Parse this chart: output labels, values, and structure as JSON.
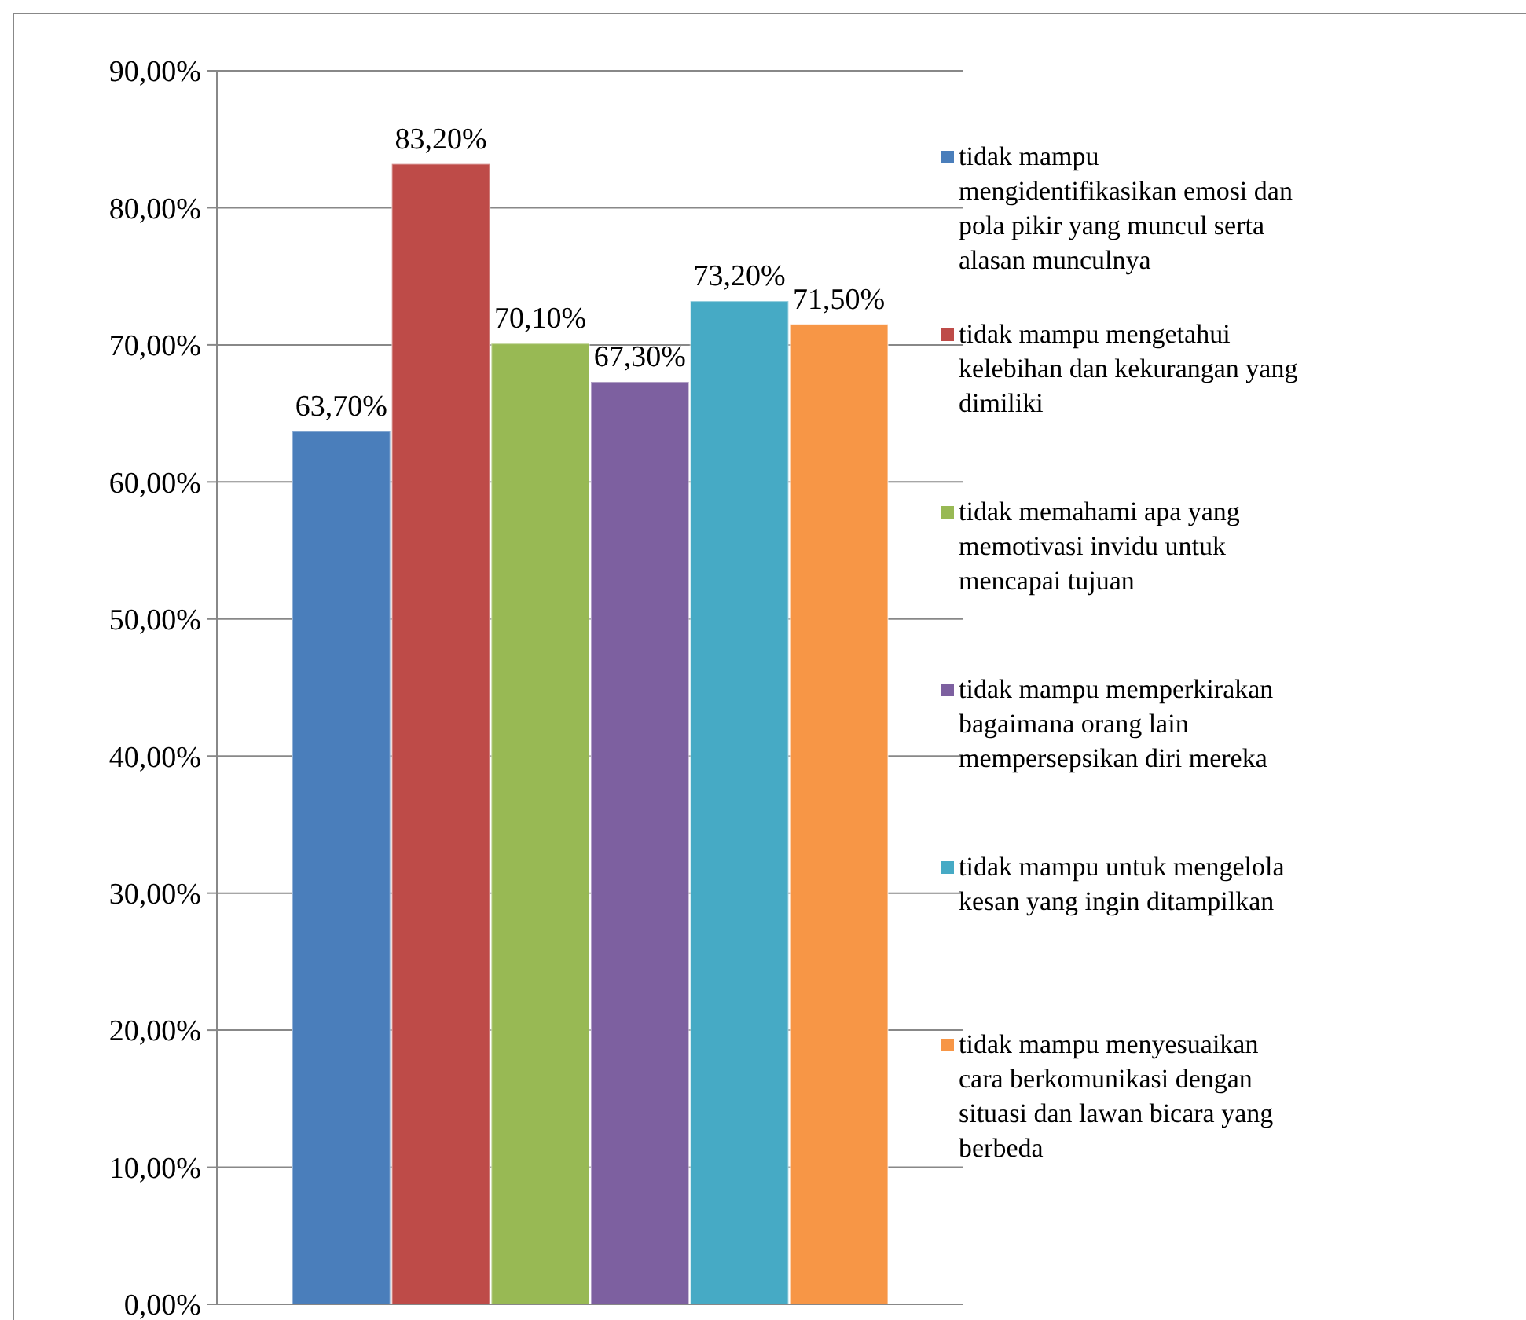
{
  "chart_data": {
    "type": "bar",
    "categories": [
      null
    ],
    "series": [
      {
        "name": "tidak mampu mengidentifikasikan emosi dan pola pikir yang muncul serta alasan munculnya",
        "color": "#4a7ebb",
        "values": [
          63.7
        ],
        "value_labels": [
          "63,70%"
        ]
      },
      {
        "name": "tidak mampu mengetahui kelebihan dan kekurangan yang dimiliki",
        "color": "#be4b48",
        "values": [
          83.2
        ],
        "value_labels": [
          "83,20%"
        ]
      },
      {
        "name": "tidak memahami apa yang memotivasi invidu untuk mencapai tujuan",
        "color": "#98b954",
        "values": [
          70.1
        ],
        "value_labels": [
          "70,10%"
        ]
      },
      {
        "name": "tidak mampu memperkirakan bagaimana orang lain mempersepsikan diri mereka",
        "color": "#7d60a0",
        "values": [
          67.3
        ],
        "value_labels": [
          "67,30%"
        ]
      },
      {
        "name": "tidak mampu untuk mengelola kesan yang ingin ditampilkan",
        "color": "#46aac5",
        "values": [
          73.2
        ],
        "value_labels": [
          "73,20%"
        ]
      },
      {
        "name": "tidak mampu menyesuaikan cara berkomunikasi dengan situasi dan lawan bicara yang berbeda",
        "color": "#f79646",
        "values": [
          71.5
        ],
        "value_labels": [
          "71,50%"
        ]
      }
    ],
    "ylim": [
      0,
      90
    ],
    "yticks": [
      {
        "value": 0,
        "label": "0,00%"
      },
      {
        "value": 10,
        "label": "10,00%"
      },
      {
        "value": 20,
        "label": "20,00%"
      },
      {
        "value": 30,
        "label": "30,00%"
      },
      {
        "value": 40,
        "label": "40,00%"
      },
      {
        "value": 50,
        "label": "50,00%"
      },
      {
        "value": 60,
        "label": "60,00%"
      },
      {
        "value": 70,
        "label": "70,00%"
      },
      {
        "value": 80,
        "label": "80,00%"
      },
      {
        "value": 90,
        "label": "90,00%"
      }
    ],
    "grid": "y",
    "legend": "right"
  }
}
